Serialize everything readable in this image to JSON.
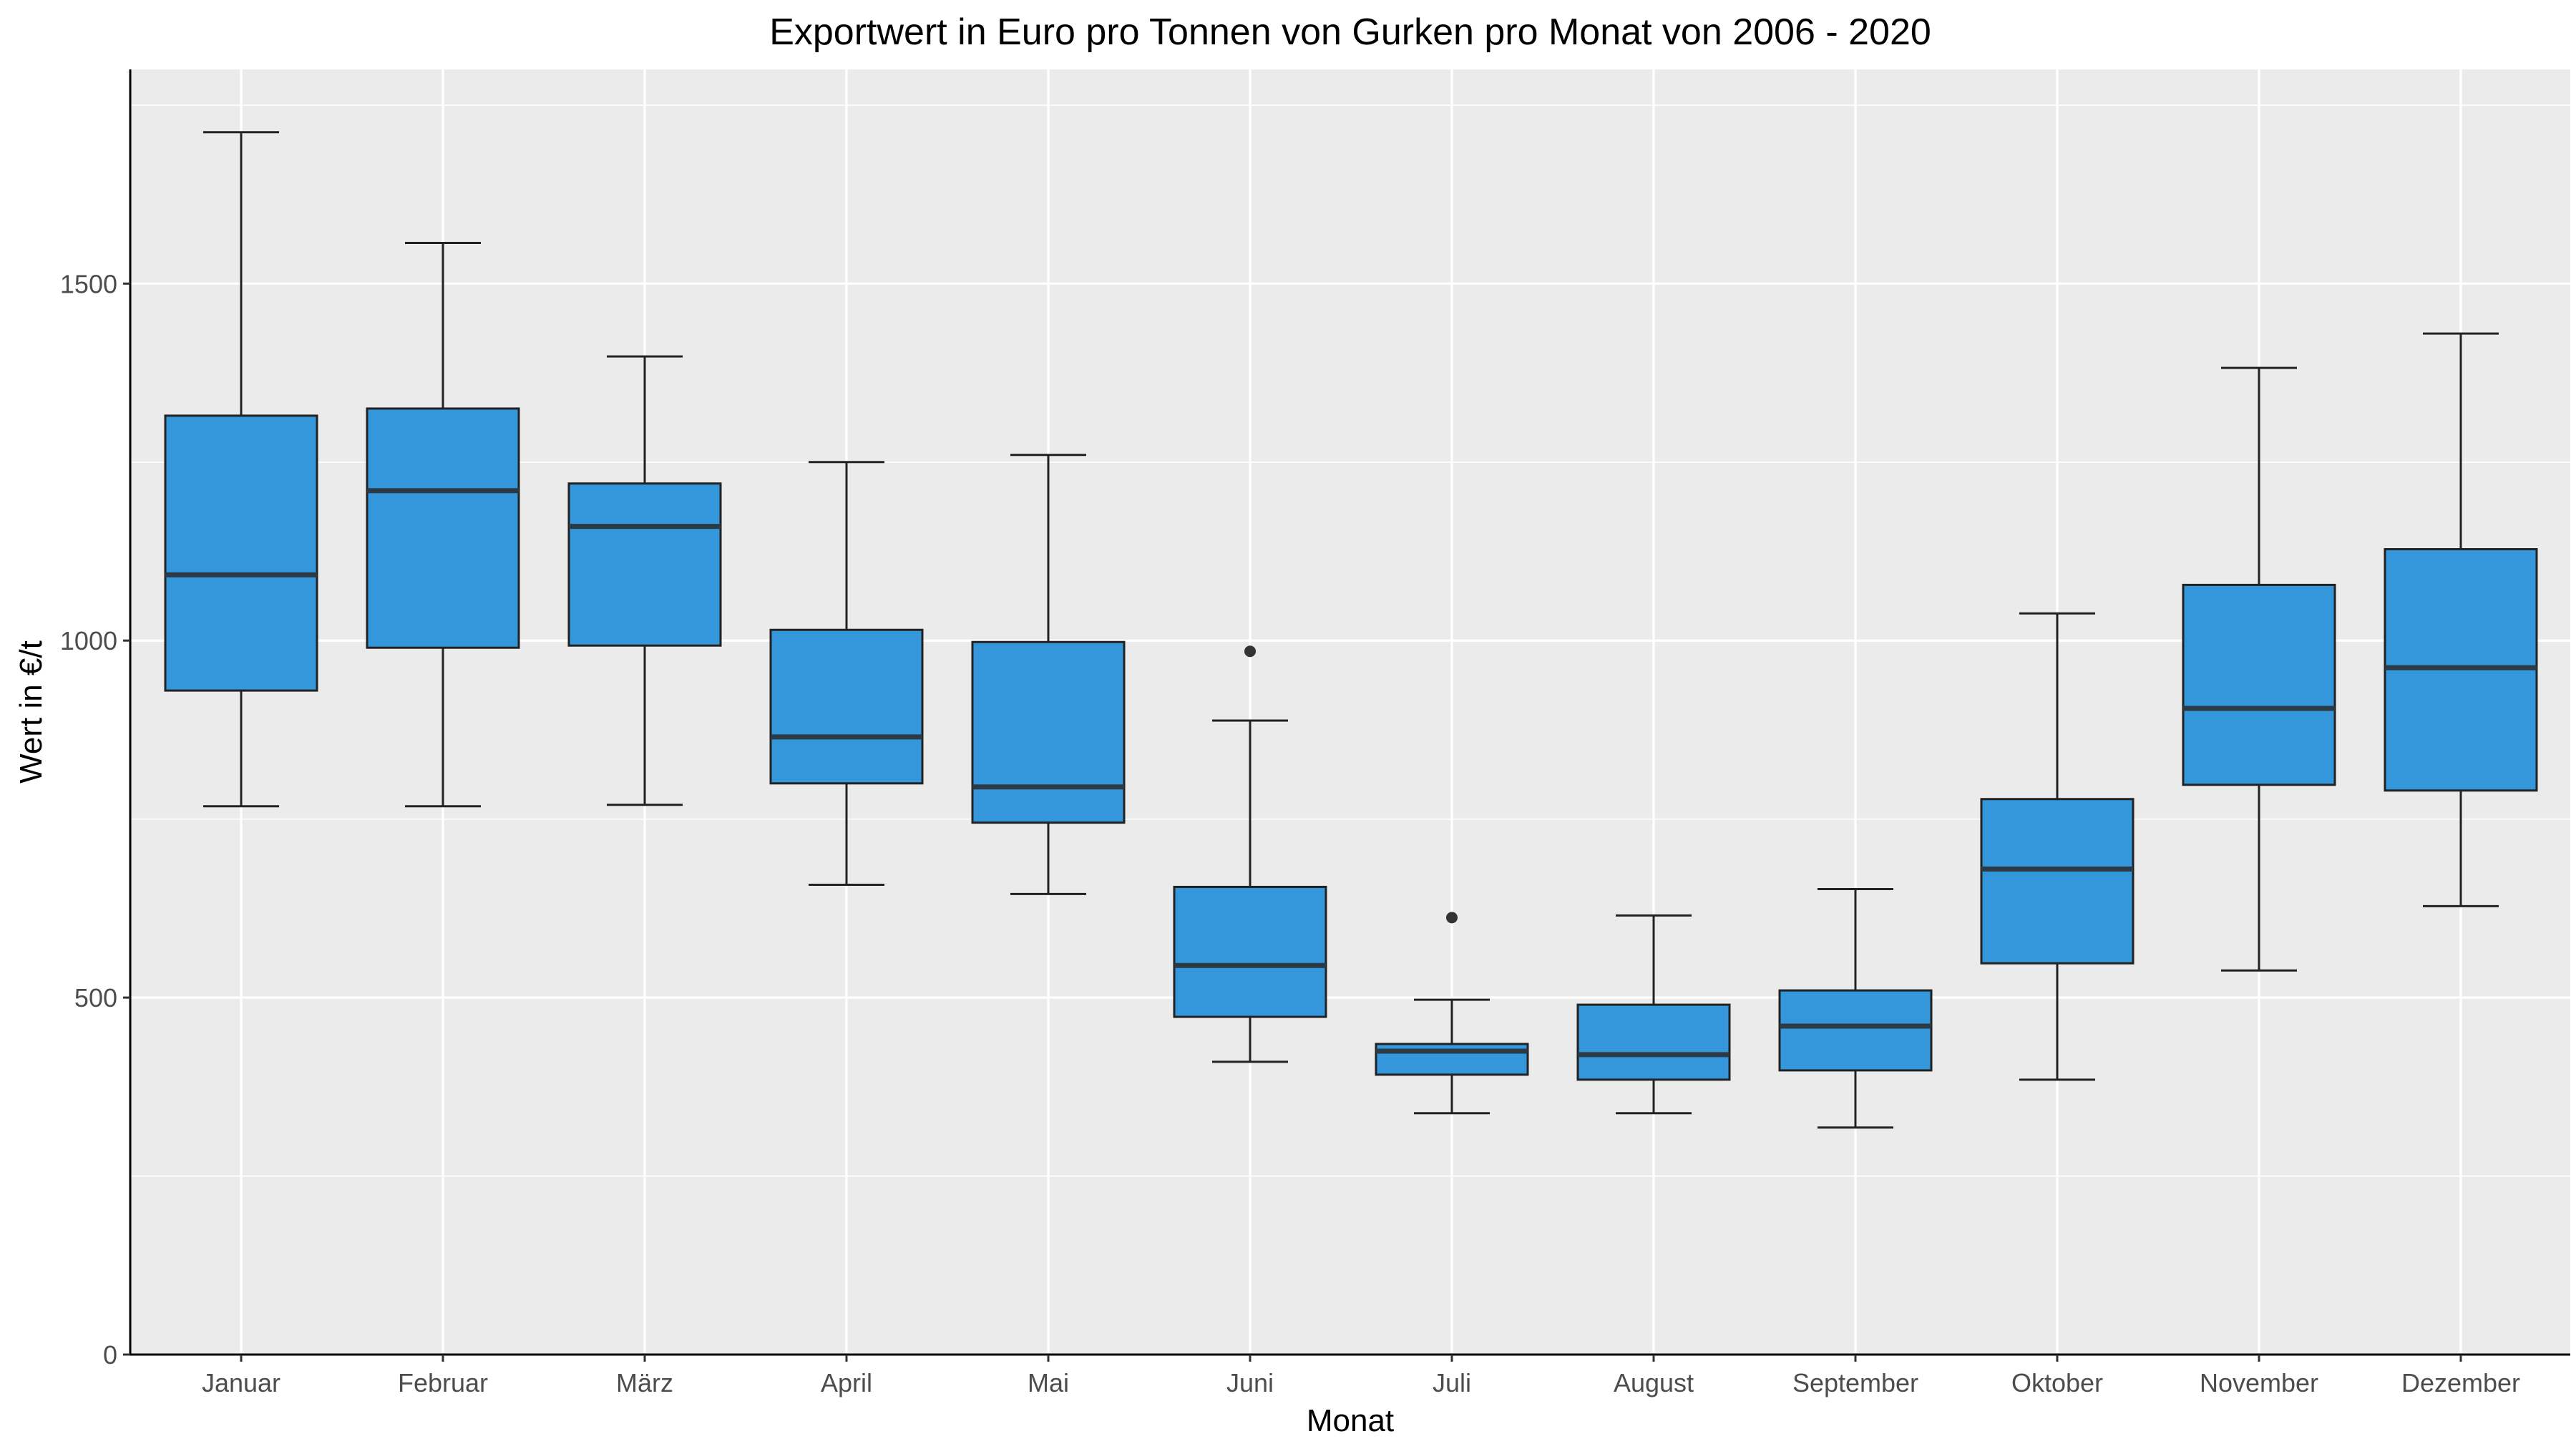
{
  "chart_data": {
    "type": "boxplot",
    "title": "Exportwert in Euro pro Tonnen von Gurken pro Monat von 2006 - 2020",
    "xlabel": "Monat",
    "ylabel": "Wert in €/t",
    "ylim": [
      0,
      1800
    ],
    "yticks": [
      0,
      500,
      1000,
      1500
    ],
    "ytick_labels": [
      "0",
      "500",
      "1000",
      "1500"
    ],
    "grid": true,
    "legend": "none",
    "colors": {
      "panel": "#EBEBEB",
      "grid": "#FFFFFF",
      "box_fill": "#3497DB",
      "box_line": "#222222",
      "median_line": "#2B3A45",
      "outlier": "#333333"
    },
    "categories": [
      "Januar",
      "Februar",
      "März",
      "April",
      "Mai",
      "Juni",
      "Juli",
      "August",
      "September",
      "Oktober",
      "November",
      "Dezember"
    ],
    "boxes": [
      {
        "min": 768,
        "q1": 930,
        "median": 1092,
        "q3": 1315,
        "max": 1712,
        "outliers": []
      },
      {
        "min": 768,
        "q1": 990,
        "median": 1210,
        "q3": 1325,
        "max": 1557,
        "outliers": []
      },
      {
        "min": 770,
        "q1": 993,
        "median": 1160,
        "q3": 1220,
        "max": 1398,
        "outliers": []
      },
      {
        "min": 658,
        "q1": 800,
        "median": 865,
        "q3": 1015,
        "max": 1250,
        "outliers": []
      },
      {
        "min": 645,
        "q1": 745,
        "median": 795,
        "q3": 998,
        "max": 1260,
        "outliers": []
      },
      {
        "min": 410,
        "q1": 473,
        "median": 545,
        "q3": 655,
        "max": 888,
        "outliers": [
          985
        ]
      },
      {
        "min": 338,
        "q1": 392,
        "median": 425,
        "q3": 435,
        "max": 497,
        "outliers": [
          612
        ]
      },
      {
        "min": 338,
        "q1": 385,
        "median": 420,
        "q3": 490,
        "max": 615,
        "outliers": []
      },
      {
        "min": 318,
        "q1": 398,
        "median": 460,
        "q3": 510,
        "max": 652,
        "outliers": []
      },
      {
        "min": 385,
        "q1": 548,
        "median": 680,
        "q3": 778,
        "max": 1038,
        "outliers": []
      },
      {
        "min": 538,
        "q1": 798,
        "median": 905,
        "q3": 1078,
        "max": 1382,
        "outliers": []
      },
      {
        "min": 628,
        "q1": 790,
        "median": 962,
        "q3": 1128,
        "max": 1430,
        "outliers": []
      }
    ]
  }
}
